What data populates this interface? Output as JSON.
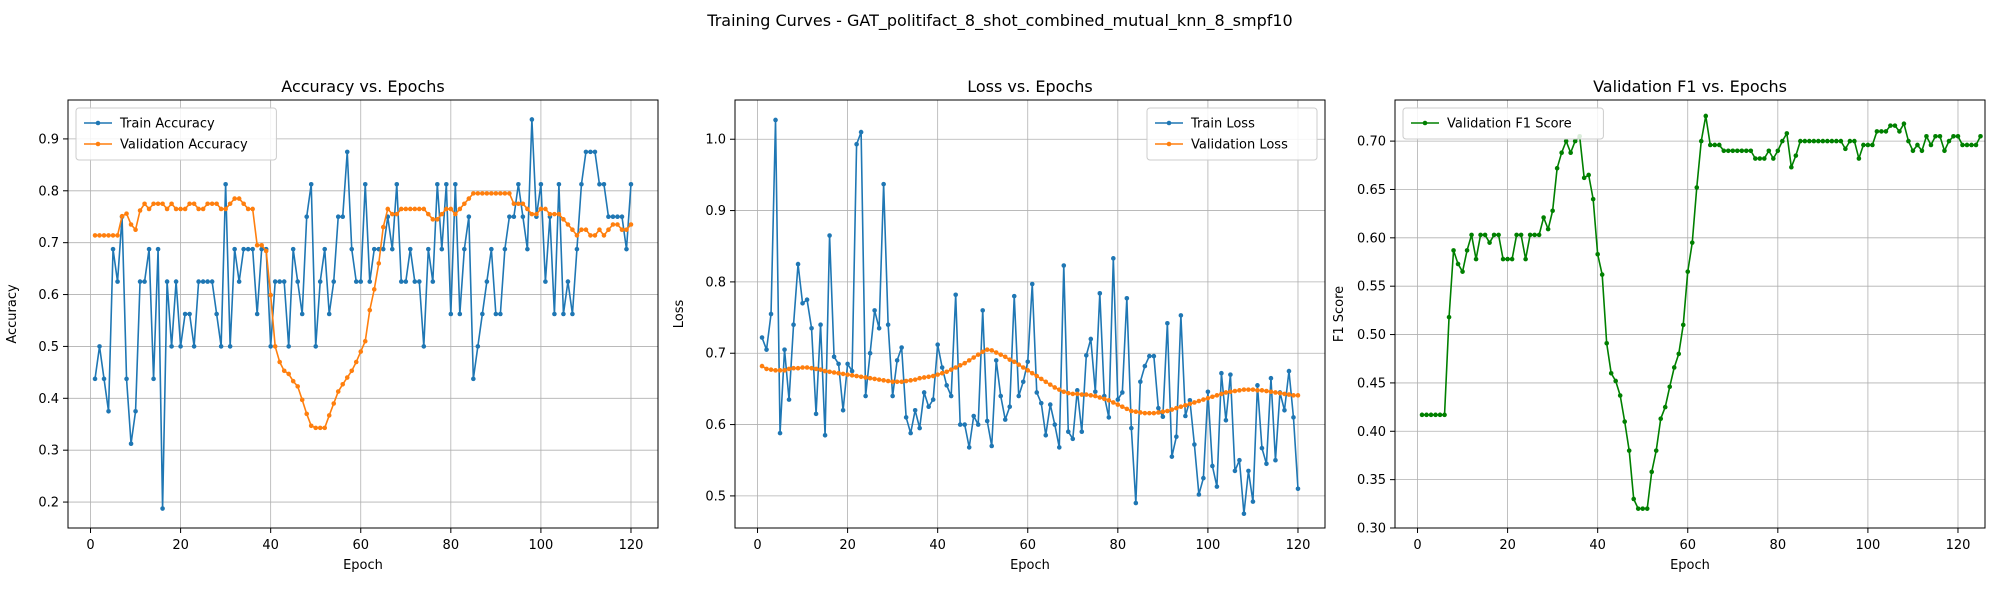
{
  "figure": {
    "suptitle": "Training Curves - GAT_politifact_8_shot_combined_mutual_knn_8_smpf10"
  },
  "chart_data": [
    {
      "type": "line",
      "title": "Accuracy vs. Epochs",
      "xlabel": "Epoch",
      "ylabel": "Accuracy",
      "xlim": [
        -5,
        126
      ],
      "ylim": [
        0.15,
        0.975
      ],
      "xticks": [
        0,
        20,
        40,
        60,
        80,
        100,
        120
      ],
      "yticks": [
        0.2,
        0.3,
        0.4,
        0.5,
        0.6,
        0.7,
        0.8,
        0.9
      ],
      "ytick_labels": [
        "0.2",
        "0.3",
        "0.4",
        "0.5",
        "0.6",
        "0.7",
        "0.8",
        "0.9"
      ],
      "grid": true,
      "legend": "upper-left",
      "series": [
        {
          "name": "Train Accuracy",
          "color": "#1f77b4",
          "values": [
            0.4375,
            0.5,
            0.4375,
            0.375,
            0.6875,
            0.625,
            0.75,
            0.4375,
            0.3125,
            0.375,
            0.625,
            0.625,
            0.6875,
            0.4375,
            0.6875,
            0.1875,
            0.625,
            0.5,
            0.625,
            0.5,
            0.5625,
            0.5625,
            0.5,
            0.625,
            0.625,
            0.625,
            0.625,
            0.5625,
            0.5,
            0.8125,
            0.5,
            0.6875,
            0.625,
            0.6875,
            0.6875,
            0.6875,
            0.5625,
            0.6875,
            0.6875,
            0.5,
            0.625,
            0.625,
            0.625,
            0.5,
            0.6875,
            0.625,
            0.5625,
            0.75,
            0.8125,
            0.5,
            0.625,
            0.6875,
            0.5625,
            0.625,
            0.75,
            0.75,
            0.875,
            0.6875,
            0.625,
            0.625,
            0.8125,
            0.625,
            0.6875,
            0.6875,
            0.6875,
            0.75,
            0.6875,
            0.8125,
            0.625,
            0.625,
            0.6875,
            0.625,
            0.625,
            0.5,
            0.6875,
            0.625,
            0.8125,
            0.6875,
            0.8125,
            0.5625,
            0.8125,
            0.5625,
            0.6875,
            0.75,
            0.4375,
            0.5,
            0.5625,
            0.625,
            0.6875,
            0.5625,
            0.5625,
            0.6875,
            0.75,
            0.75,
            0.8125,
            0.75,
            0.6875,
            0.9375,
            0.75,
            0.8125,
            0.625,
            0.75,
            0.5625,
            0.8125,
            0.5625,
            0.625,
            0.5625,
            0.6875,
            0.8125,
            0.875,
            0.875,
            0.875,
            0.8125,
            0.8125,
            0.75,
            0.75,
            0.75,
            0.75,
            0.6875,
            0.8125
          ]
        },
        {
          "name": "Validation Accuracy",
          "color": "#ff7f0e",
          "values": [
            0.714,
            0.714,
            0.714,
            0.714,
            0.714,
            0.714,
            0.751,
            0.756,
            0.735,
            0.725,
            0.762,
            0.775,
            0.765,
            0.775,
            0.775,
            0.775,
            0.765,
            0.775,
            0.765,
            0.765,
            0.765,
            0.775,
            0.775,
            0.765,
            0.765,
            0.775,
            0.775,
            0.775,
            0.765,
            0.765,
            0.775,
            0.785,
            0.785,
            0.775,
            0.765,
            0.765,
            0.695,
            0.695,
            0.684,
            0.599,
            0.5,
            0.47,
            0.453,
            0.447,
            0.433,
            0.423,
            0.397,
            0.37,
            0.347,
            0.343,
            0.343,
            0.343,
            0.367,
            0.39,
            0.413,
            0.427,
            0.44,
            0.453,
            0.47,
            0.49,
            0.51,
            0.57,
            0.61,
            0.66,
            0.73,
            0.765,
            0.755,
            0.755,
            0.765,
            0.765,
            0.765,
            0.765,
            0.765,
            0.765,
            0.755,
            0.745,
            0.745,
            0.755,
            0.765,
            0.765,
            0.755,
            0.765,
            0.775,
            0.785,
            0.795,
            0.795,
            0.795,
            0.795,
            0.795,
            0.795,
            0.795,
            0.795,
            0.795,
            0.775,
            0.775,
            0.775,
            0.765,
            0.755,
            0.755,
            0.765,
            0.765,
            0.755,
            0.755,
            0.755,
            0.745,
            0.735,
            0.725,
            0.714,
            0.725,
            0.725,
            0.714,
            0.714,
            0.725,
            0.714,
            0.725,
            0.735,
            0.735,
            0.725,
            0.725,
            0.735
          ]
        }
      ]
    },
    {
      "type": "line",
      "title": "Loss vs. Epochs",
      "xlabel": "Epoch",
      "ylabel": "Loss",
      "xlim": [
        -5,
        126
      ],
      "ylim": [
        0.455,
        1.055
      ],
      "xticks": [
        0,
        20,
        40,
        60,
        80,
        100,
        120
      ],
      "yticks": [
        0.5,
        0.6,
        0.7,
        0.8,
        0.9,
        1.0
      ],
      "ytick_labels": [
        "0.5",
        "0.6",
        "0.7",
        "0.8",
        "0.9",
        "1.0"
      ],
      "grid": true,
      "legend": "upper-right",
      "series": [
        {
          "name": "Train Loss",
          "color": "#1f77b4",
          "values": [
            0.722,
            0.705,
            0.755,
            1.027,
            0.588,
            0.705,
            0.635,
            0.74,
            0.825,
            0.77,
            0.775,
            0.735,
            0.615,
            0.74,
            0.585,
            0.865,
            0.695,
            0.685,
            0.62,
            0.685,
            0.675,
            0.993,
            1.01,
            0.64,
            0.7,
            0.76,
            0.735,
            0.937,
            0.74,
            0.64,
            0.69,
            0.708,
            0.61,
            0.588,
            0.62,
            0.595,
            0.645,
            0.625,
            0.635,
            0.712,
            0.68,
            0.655,
            0.64,
            0.782,
            0.6,
            0.6,
            0.568,
            0.612,
            0.6,
            0.76,
            0.605,
            0.57,
            0.69,
            0.64,
            0.607,
            0.625,
            0.78,
            0.64,
            0.66,
            0.688,
            0.797,
            0.645,
            0.63,
            0.585,
            0.628,
            0.6,
            0.568,
            0.823,
            0.59,
            0.58,
            0.648,
            0.59,
            0.697,
            0.72,
            0.646,
            0.784,
            0.64,
            0.61,
            0.833,
            0.635,
            0.645,
            0.777,
            0.595,
            0.49,
            0.66,
            0.682,
            0.696,
            0.696,
            0.623,
            0.611,
            0.742,
            0.555,
            0.583,
            0.753,
            0.612,
            0.634,
            0.572,
            0.502,
            0.525,
            0.646,
            0.542,
            0.513,
            0.672,
            0.606,
            0.67,
            0.535,
            0.55,
            0.475,
            0.535,
            0.492,
            0.655,
            0.567,
            0.545,
            0.665,
            0.55,
            0.645,
            0.62,
            0.675,
            0.61,
            0.51
          ]
        },
        {
          "name": "Validation Loss",
          "color": "#ff7f0e",
          "values": [
            0.682,
            0.678,
            0.677,
            0.676,
            0.676,
            0.676,
            0.678,
            0.679,
            0.679,
            0.68,
            0.68,
            0.679,
            0.678,
            0.677,
            0.675,
            0.674,
            0.673,
            0.672,
            0.671,
            0.67,
            0.669,
            0.668,
            0.667,
            0.666,
            0.665,
            0.664,
            0.663,
            0.662,
            0.661,
            0.66,
            0.66,
            0.66,
            0.661,
            0.662,
            0.663,
            0.665,
            0.666,
            0.667,
            0.668,
            0.67,
            0.672,
            0.674,
            0.677,
            0.68,
            0.683,
            0.686,
            0.69,
            0.694,
            0.698,
            0.702,
            0.705,
            0.704,
            0.701,
            0.698,
            0.695,
            0.691,
            0.688,
            0.684,
            0.68,
            0.676,
            0.672,
            0.668,
            0.664,
            0.66,
            0.656,
            0.652,
            0.649,
            0.646,
            0.644,
            0.643,
            0.643,
            0.642,
            0.642,
            0.641,
            0.64,
            0.638,
            0.636,
            0.634,
            0.631,
            0.628,
            0.625,
            0.622,
            0.619,
            0.618,
            0.617,
            0.616,
            0.616,
            0.616,
            0.617,
            0.618,
            0.619,
            0.621,
            0.623,
            0.625,
            0.627,
            0.629,
            0.631,
            0.633,
            0.635,
            0.637,
            0.639,
            0.641,
            0.643,
            0.645,
            0.646,
            0.647,
            0.648,
            0.649,
            0.649,
            0.649,
            0.648,
            0.648,
            0.647,
            0.646,
            0.645,
            0.644,
            0.643,
            0.642,
            0.641,
            0.641
          ]
        }
      ]
    },
    {
      "type": "line",
      "title": "Validation F1 vs. Epochs",
      "xlabel": "Epoch",
      "ylabel": "F1 Score",
      "xlim": [
        -5,
        126
      ],
      "ylim": [
        0.3,
        0.7425
      ],
      "xticks": [
        0,
        20,
        40,
        60,
        80,
        100,
        120
      ],
      "yticks": [
        0.3,
        0.35,
        0.4,
        0.45,
        0.5,
        0.55,
        0.6,
        0.65,
        0.7
      ],
      "ytick_labels": [
        "0.30",
        "0.35",
        "0.40",
        "0.45",
        "0.50",
        "0.55",
        "0.60",
        "0.65",
        "0.70"
      ],
      "grid": true,
      "legend": "upper-left",
      "series": [
        {
          "name": "Validation F1 Score",
          "color": "#008000",
          "values": [
            0.417,
            0.417,
            0.417,
            0.417,
            0.417,
            0.417,
            0.518,
            0.587,
            0.573,
            0.565,
            0.587,
            0.603,
            0.578,
            0.603,
            0.603,
            0.595,
            0.603,
            0.603,
            0.578,
            0.578,
            0.578,
            0.603,
            0.603,
            0.578,
            0.603,
            0.603,
            0.603,
            0.621,
            0.609,
            0.628,
            0.672,
            0.688,
            0.7,
            0.688,
            0.7,
            0.705,
            0.662,
            0.665,
            0.64,
            0.583,
            0.562,
            0.491,
            0.46,
            0.452,
            0.437,
            0.41,
            0.38,
            0.33,
            0.32,
            0.32,
            0.32,
            0.358,
            0.38,
            0.413,
            0.425,
            0.446,
            0.466,
            0.48,
            0.51,
            0.565,
            0.595,
            0.652,
            0.7,
            0.726,
            0.696,
            0.696,
            0.696,
            0.69,
            0.69,
            0.69,
            0.69,
            0.69,
            0.69,
            0.69,
            0.682,
            0.682,
            0.682,
            0.69,
            0.682,
            0.69,
            0.7,
            0.708,
            0.673,
            0.685,
            0.7,
            0.7,
            0.7,
            0.7,
            0.7,
            0.7,
            0.7,
            0.7,
            0.7,
            0.7,
            0.692,
            0.7,
            0.7,
            0.682,
            0.696,
            0.696,
            0.696,
            0.71,
            0.71,
            0.71,
            0.716,
            0.716,
            0.71,
            0.718,
            0.7,
            0.69,
            0.696,
            0.69,
            0.705,
            0.696,
            0.705,
            0.705,
            0.69,
            0.7,
            0.705,
            0.705,
            0.696,
            0.696,
            0.696,
            0.696,
            0.705
          ]
        }
      ]
    }
  ]
}
